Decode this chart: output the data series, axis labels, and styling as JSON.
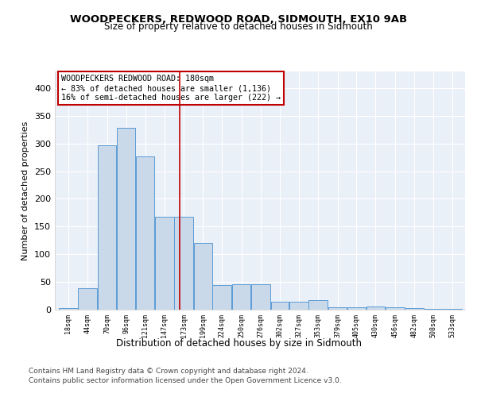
{
  "title": "WOODPECKERS, REDWOOD ROAD, SIDMOUTH, EX10 9AB",
  "subtitle": "Size of property relative to detached houses in Sidmouth",
  "xlabel": "Distribution of detached houses by size in Sidmouth",
  "ylabel": "Number of detached properties",
  "footer_line1": "Contains HM Land Registry data © Crown copyright and database right 2024.",
  "footer_line2": "Contains public sector information licensed under the Open Government Licence v3.0.",
  "annotation_line1": "WOODPECKERS REDWOOD ROAD: 180sqm",
  "annotation_line2": "← 83% of detached houses are smaller (1,136)",
  "annotation_line3": "16% of semi-detached houses are larger (222) →",
  "bar_edges": [
    18,
    44,
    70,
    96,
    121,
    147,
    173,
    199,
    224,
    250,
    276,
    302,
    327,
    353,
    379,
    405,
    430,
    456,
    482,
    508,
    533
  ],
  "bar_heights": [
    3,
    39,
    297,
    328,
    277,
    167,
    167,
    121,
    44,
    46,
    46,
    15,
    15,
    17,
    5,
    5,
    6,
    5,
    3,
    2,
    2
  ],
  "property_size": 180,
  "bar_color": "#c9d9ea",
  "bar_edge_color": "#5b9bd5",
  "vline_color": "#c00000",
  "annotation_box_color": "#c00000",
  "background_color": "#eaf0f8",
  "ylim": [
    0,
    430
  ],
  "yticks": [
    0,
    50,
    100,
    150,
    200,
    250,
    300,
    350,
    400
  ]
}
